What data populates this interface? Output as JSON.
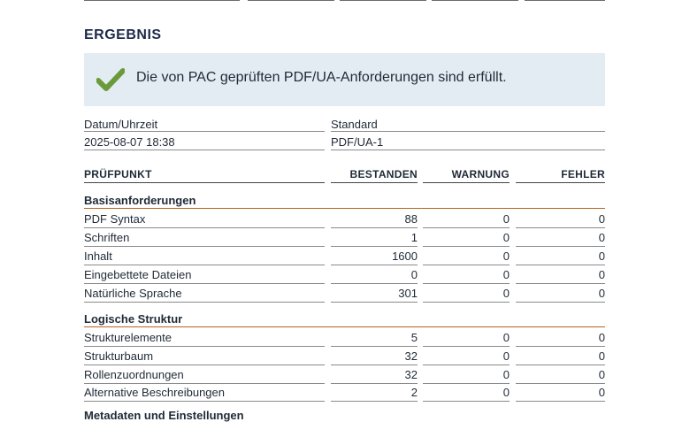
{
  "heading": "ERGEBNIS",
  "result_message": "Die von PAC geprüften PDF/UA-Anforderungen sind erfüllt.",
  "colors": {
    "check": "#6b9a3a",
    "result_bg": "#e4ecf3",
    "section_rule": "#b5651d",
    "heading": "#1c2a4a"
  },
  "meta": {
    "datetime_label": "Datum/Uhrzeit",
    "datetime_value": "2025-08-07 18:38",
    "standard_label": "Standard",
    "standard_value": "PDF/UA-1"
  },
  "columns": {
    "checkpoint": "PRÜFPUNKT",
    "passed": "BESTANDEN",
    "warning": "WARNUNG",
    "error": "FEHLER"
  },
  "sections": [
    {
      "title": "Basisanforderungen",
      "rows": [
        {
          "name": "PDF Syntax",
          "passed": "88",
          "warning": "0",
          "error": "0"
        },
        {
          "name": "Schriften",
          "passed": "1",
          "warning": "0",
          "error": "0"
        },
        {
          "name": "Inhalt",
          "passed": "1600",
          "warning": "0",
          "error": "0"
        },
        {
          "name": "Eingebettete Dateien",
          "passed": "0",
          "warning": "0",
          "error": "0"
        },
        {
          "name": "Natürliche Sprache",
          "passed": "301",
          "warning": "0",
          "error": "0"
        }
      ]
    },
    {
      "title": "Logische Struktur",
      "rows": [
        {
          "name": "Strukturelemente",
          "passed": "5",
          "warning": "0",
          "error": "0"
        },
        {
          "name": "Strukturbaum",
          "passed": "32",
          "warning": "0",
          "error": "0"
        },
        {
          "name": "Rollenzuordnungen",
          "passed": "32",
          "warning": "0",
          "error": "0"
        },
        {
          "name": "Alternative Beschreibungen",
          "passed": "2",
          "warning": "0",
          "error": "0"
        }
      ]
    },
    {
      "title": "Metadaten und Einstellungen",
      "rows": []
    }
  ]
}
